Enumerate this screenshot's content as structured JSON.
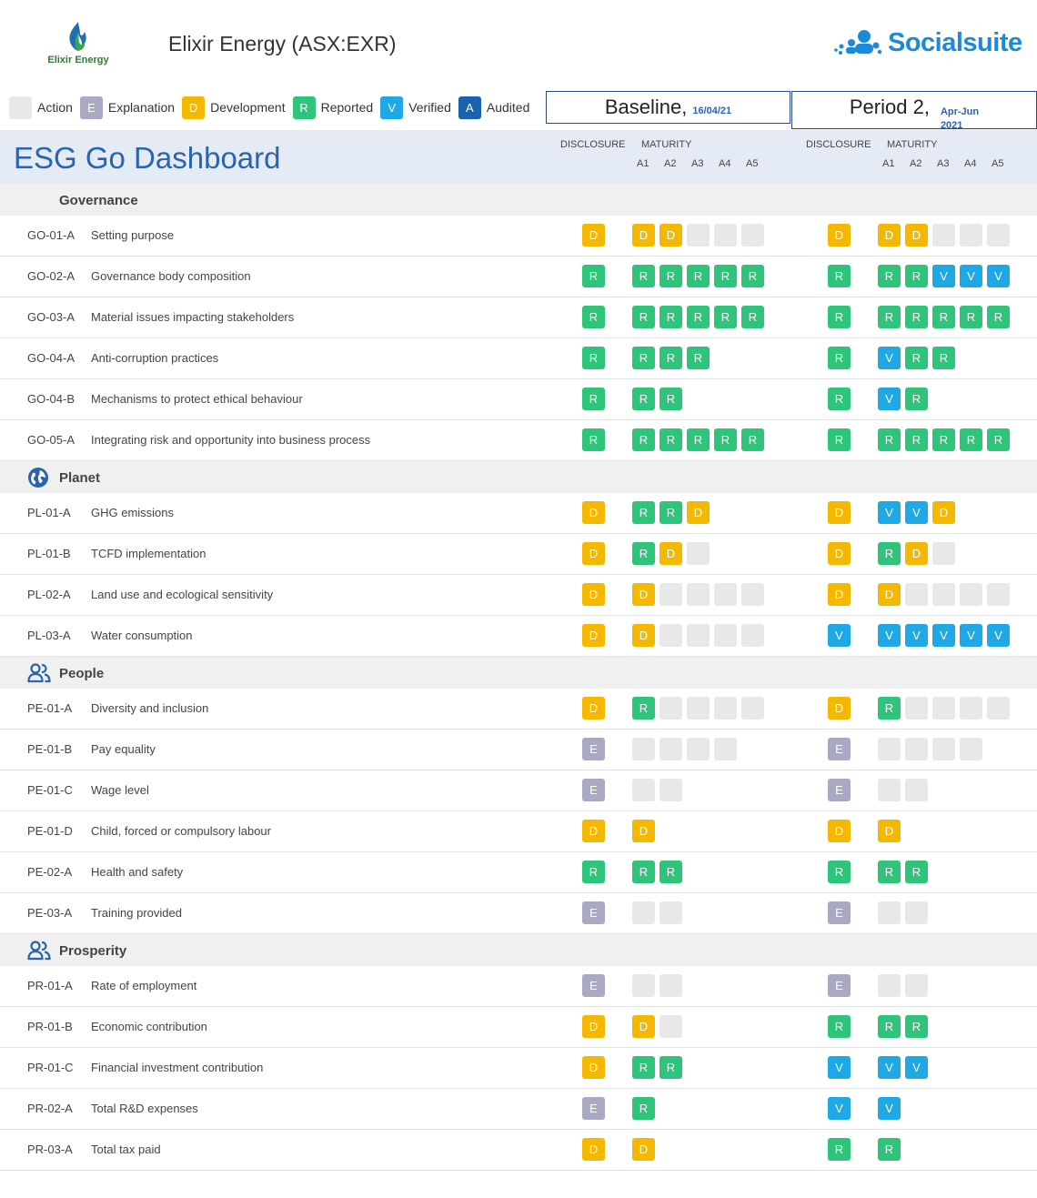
{
  "header": {
    "logo_text": "Elixir Energy",
    "company_title": "Elixir Energy (ASX:EXR)",
    "brand_name": "Socialsuite"
  },
  "legend": [
    {
      "code": "",
      "label": "Action",
      "status": "blank"
    },
    {
      "code": "E",
      "label": "Explanation",
      "status": "E"
    },
    {
      "code": "D",
      "label": "Development",
      "status": "D"
    },
    {
      "code": "R",
      "label": "Reported",
      "status": "R"
    },
    {
      "code": "V",
      "label": "Verified",
      "status": "V"
    },
    {
      "code": "A",
      "label": "Audited",
      "status": "A"
    }
  ],
  "periods": [
    {
      "title": "Baseline,",
      "sub": "16/04/21"
    },
    {
      "title": "Period 2,",
      "sub_line1": "Apr-Jun",
      "sub_line2": "2021"
    }
  ],
  "dashboard_title": "ESG Go Dashboard",
  "column_headers": {
    "disclosure": "DISCLOSURE",
    "maturity": "MATURITY",
    "maturity_levels": [
      "A1",
      "A2",
      "A3",
      "A4",
      "A5"
    ]
  },
  "colors": {
    "Explanation": "#a9a9c4",
    "Development": "#f5b800",
    "Reported": "#2ec57a",
    "Verified": "#1ea8e6",
    "Audited": "#1a62ae",
    "Action": "#e8e8e8"
  },
  "sections": [
    {
      "title": "Governance",
      "icon": "none",
      "rows": [
        {
          "code": "GO-01-A",
          "label": "Setting purpose",
          "b_disc": "D",
          "b_mat": [
            "D",
            "D",
            "-",
            "-",
            "-"
          ],
          "p_disc": "D",
          "p_mat": [
            "D",
            "D",
            "-",
            "-",
            "-"
          ]
        },
        {
          "code": "GO-02-A",
          "label": "Governance body composition",
          "b_disc": "R",
          "b_mat": [
            "R",
            "R",
            "R",
            "R",
            "R"
          ],
          "p_disc": "R",
          "p_mat": [
            "R",
            "R",
            "V",
            "V",
            "V"
          ]
        },
        {
          "code": "GO-03-A",
          "label": "Material issues impacting stakeholders",
          "b_disc": "R",
          "b_mat": [
            "R",
            "R",
            "R",
            "R",
            "R"
          ],
          "p_disc": "R",
          "p_mat": [
            "R",
            "R",
            "R",
            "R",
            "R"
          ]
        },
        {
          "code": "GO-04-A",
          "label": "Anti-corruption practices",
          "b_disc": "R",
          "b_mat": [
            "R",
            "R",
            "R"
          ],
          "p_disc": "R",
          "p_mat": [
            "V",
            "R",
            "R"
          ]
        },
        {
          "code": "GO-04-B",
          "label": "Mechanisms to protect ethical behaviour",
          "b_disc": "R",
          "b_mat": [
            "R",
            "R"
          ],
          "p_disc": "R",
          "p_mat": [
            "V",
            "R"
          ]
        },
        {
          "code": "GO-05-A",
          "label": "Integrating risk and opportunity into business process",
          "b_disc": "R",
          "b_mat": [
            "R",
            "R",
            "R",
            "R",
            "R"
          ],
          "p_disc": "R",
          "p_mat": [
            "R",
            "R",
            "R",
            "R",
            "R"
          ]
        }
      ]
    },
    {
      "title": "Planet",
      "icon": "globe-icon",
      "rows": [
        {
          "code": "PL-01-A",
          "label": "GHG emissions",
          "b_disc": "D",
          "b_mat": [
            "R",
            "R",
            "D"
          ],
          "p_disc": "D",
          "p_mat": [
            "V",
            "V",
            "D"
          ]
        },
        {
          "code": "PL-01-B",
          "label": "TCFD implementation",
          "b_disc": "D",
          "b_mat": [
            "R",
            "D",
            "-"
          ],
          "p_disc": "D",
          "p_mat": [
            "R",
            "D",
            "-"
          ]
        },
        {
          "code": "PL-02-A",
          "label": "Land use and ecological sensitivity",
          "b_disc": "D",
          "b_mat": [
            "D",
            "-",
            "-",
            "-",
            "-"
          ],
          "p_disc": "D",
          "p_mat": [
            "D",
            "-",
            "-",
            "-",
            "-"
          ]
        },
        {
          "code": "PL-03-A",
          "label": "Water consumption",
          "b_disc": "D",
          "b_mat": [
            "D",
            "-",
            "-",
            "-",
            "-"
          ],
          "p_disc": "V",
          "p_mat": [
            "V",
            "V",
            "V",
            "V",
            "V"
          ]
        }
      ]
    },
    {
      "title": "People",
      "icon": "people-icon",
      "rows": [
        {
          "code": "PE-01-A",
          "label": "Diversity and inclusion",
          "b_disc": "D",
          "b_mat": [
            "R",
            "-",
            "-",
            "-",
            "-"
          ],
          "p_disc": "D",
          "p_mat": [
            "R",
            "-",
            "-",
            "-",
            "-"
          ]
        },
        {
          "code": "PE-01-B",
          "label": "Pay equality",
          "b_disc": "E",
          "b_mat": [
            "-",
            "-",
            "-",
            "-"
          ],
          "p_disc": "E",
          "p_mat": [
            "-",
            "-",
            "-",
            "-"
          ]
        },
        {
          "code": "PE-01-C",
          "label": "Wage level",
          "b_disc": "E",
          "b_mat": [
            "-",
            "-"
          ],
          "p_disc": "E",
          "p_mat": [
            "-",
            "-"
          ]
        },
        {
          "code": "PE-01-D",
          "label": "Child, forced or compulsory labour",
          "b_disc": "D",
          "b_mat": [
            "D"
          ],
          "p_disc": "D",
          "p_mat": [
            "D"
          ]
        },
        {
          "code": "PE-02-A",
          "label": "Health and safety",
          "b_disc": "R",
          "b_mat": [
            "R",
            "R"
          ],
          "p_disc": "R",
          "p_mat": [
            "R",
            "R"
          ]
        },
        {
          "code": "PE-03-A",
          "label": "Training provided",
          "b_disc": "E",
          "b_mat": [
            "-",
            "-"
          ],
          "p_disc": "E",
          "p_mat": [
            "-",
            "-"
          ]
        }
      ]
    },
    {
      "title": "Prosperity",
      "icon": "people-icon",
      "rows": [
        {
          "code": "PR-01-A",
          "label": "Rate of employment",
          "b_disc": "E",
          "b_mat": [
            "-",
            "-"
          ],
          "p_disc": "E",
          "p_mat": [
            "-",
            "-"
          ]
        },
        {
          "code": "PR-01-B",
          "label": "Economic contribution",
          "b_disc": "D",
          "b_mat": [
            "D",
            "-"
          ],
          "p_disc": "R",
          "p_mat": [
            "R",
            "R"
          ]
        },
        {
          "code": "PR-01-C",
          "label": "Financial investment contribution",
          "b_disc": "D",
          "b_mat": [
            "R",
            "R"
          ],
          "p_disc": "V",
          "p_mat": [
            "V",
            "V"
          ]
        },
        {
          "code": "PR-02-A",
          "label": "Total R&D expenses",
          "b_disc": "E",
          "b_mat": [
            "R"
          ],
          "p_disc": "V",
          "p_mat": [
            "V"
          ]
        },
        {
          "code": "PR-03-A",
          "label": "Total tax paid",
          "b_disc": "D",
          "b_mat": [
            "D"
          ],
          "p_disc": "R",
          "p_mat": [
            "R"
          ]
        }
      ]
    }
  ]
}
